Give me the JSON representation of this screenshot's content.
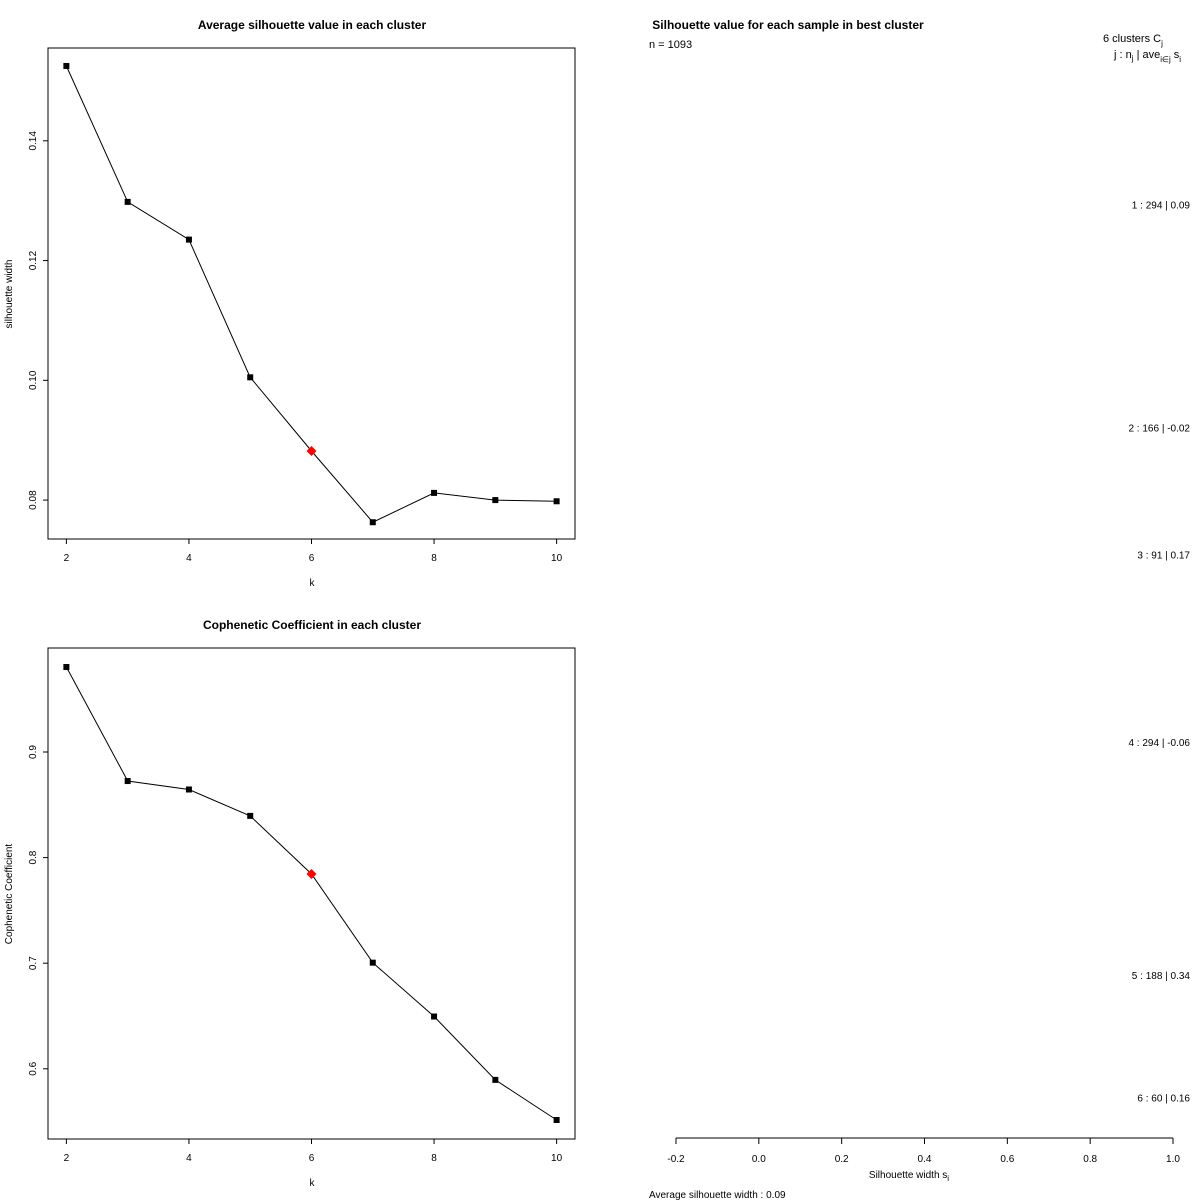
{
  "chart_data": [
    {
      "type": "line",
      "title": "Average silhouette value in each cluster",
      "xlabel": "k",
      "ylabel": "silhouette width",
      "x": [
        2,
        3,
        4,
        5,
        6,
        7,
        8,
        9,
        10
      ],
      "values": [
        0.1525,
        0.1298,
        0.1235,
        0.1005,
        0.0882,
        0.0763,
        0.0812,
        0.08,
        0.0798
      ],
      "highlight_k": 6,
      "highlight_color": "#ff0000",
      "xlim": [
        1.7,
        10.3
      ],
      "ylim": [
        0.0735,
        0.1555
      ],
      "xticks": [
        2,
        4,
        6,
        8,
        10
      ],
      "xtick_labels": [
        "2",
        "4",
        "6",
        "8",
        "10"
      ],
      "yticks": [
        0.08,
        0.1,
        0.12,
        0.14
      ],
      "ytick_labels": [
        "0.08",
        "0.10",
        "0.12",
        "0.14"
      ]
    },
    {
      "type": "line",
      "title": "Cophenetic Coefficient in each cluster",
      "xlabel": "k",
      "ylabel": "Cophenetic Coefficient",
      "x": [
        2,
        3,
        4,
        5,
        6,
        7,
        8,
        9,
        10
      ],
      "values": [
        0.9805,
        0.8725,
        0.8645,
        0.8395,
        0.7845,
        0.7005,
        0.6495,
        0.5895,
        0.5515
      ],
      "highlight_k": 6,
      "highlight_color": "#ff0000",
      "xlim": [
        1.7,
        10.3
      ],
      "ylim": [
        0.5335,
        0.9985
      ],
      "xticks": [
        2,
        4,
        6,
        8,
        10
      ],
      "xtick_labels": [
        "2",
        "4",
        "6",
        "8",
        "10"
      ],
      "yticks": [
        0.6,
        0.7,
        0.8,
        0.9
      ],
      "ytick_labels": [
        "0.6",
        "0.7",
        "0.8",
        "0.9"
      ]
    },
    {
      "type": "bar",
      "orientation": "horizontal",
      "title": "Silhouette value for each sample in best cluster",
      "n_label": "n = 1093",
      "header_clusters": "6  clusters  C",
      "header_sub_j": "j",
      "header_j": "j :  n",
      "header_ave": " | ave",
      "header_sub_ij": "i∈j",
      "header_s": "s",
      "header_sub_i": "i",
      "clusters": [
        {
          "label": "1 :  294  |  0.09",
          "n": 294,
          "avg": 0.09
        },
        {
          "label": "2 :  166  |  -0.02",
          "n": 166,
          "avg": -0.02
        },
        {
          "label": "3 :  91  |  0.17",
          "n": 91,
          "avg": 0.17
        },
        {
          "label": "4 :  294  |  -0.06",
          "n": 294,
          "avg": -0.06
        },
        {
          "label": "5 :  188  |  0.34",
          "n": 188,
          "avg": 0.34
        },
        {
          "label": "6 :  60  |  0.16",
          "n": 60,
          "avg": 0.16
        }
      ],
      "xlabel": "Silhouette width s",
      "xlabel_sub": "i",
      "xlim": [
        -0.2,
        1.0
      ],
      "xticks": [
        -0.2,
        0.0,
        0.2,
        0.4,
        0.6,
        0.8,
        1.0
      ],
      "xtick_labels": [
        "-0.2",
        "0.0",
        "0.2",
        "0.4",
        "0.6",
        "0.8",
        "1.0"
      ],
      "footer": "Average silhouette width :  0.09"
    }
  ]
}
